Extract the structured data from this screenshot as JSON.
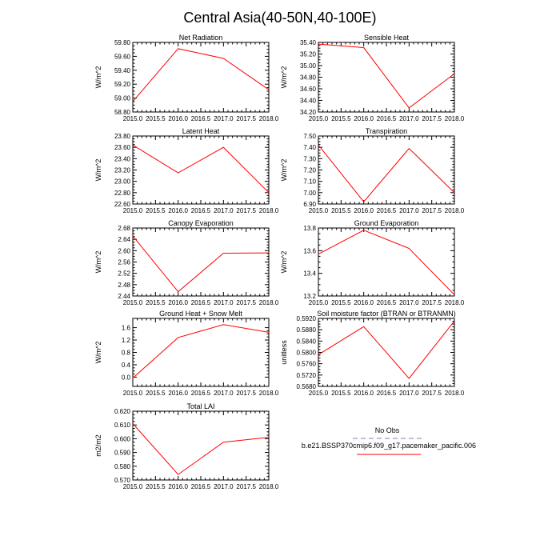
{
  "figure_title": "Central Asia(40-50N,40-100E)",
  "colors": {
    "model_line": "#ff0000",
    "obs_line": "#aaaacc",
    "axis": "#000000"
  },
  "x_ticks": [
    "2015.0",
    "2015.5",
    "2016.0",
    "2016.5",
    "2017.0",
    "2017.5",
    "2018.0"
  ],
  "legend": {
    "obs_label": "No Obs",
    "model_label": "b.e21.BSSP370cmip6.f09_g17.pacemaker_pacific.006"
  },
  "chart_data": [
    {
      "type": "line",
      "title": "Net Radiation",
      "ylabel": "W/m^2",
      "xlim": [
        2015,
        2018
      ],
      "ylim": [
        58.8,
        59.8
      ],
      "yticks": [
        "58.80",
        "59.00",
        "59.20",
        "59.40",
        "59.60",
        "59.80"
      ],
      "series": [
        {
          "name": "b.e21.BSSP370cmip6.f09_g17.pacemaker_pacific.006",
          "x": [
            2015,
            2016,
            2017,
            2018
          ],
          "y": [
            58.95,
            59.71,
            59.57,
            59.12
          ]
        }
      ]
    },
    {
      "type": "line",
      "title": "Sensible Heat",
      "ylabel": "W/m^2",
      "xlim": [
        2015,
        2018
      ],
      "ylim": [
        34.2,
        35.4
      ],
      "yticks": [
        "34.20",
        "34.40",
        "34.60",
        "34.80",
        "35.00",
        "35.20",
        "35.40"
      ],
      "series": [
        {
          "name": "b.e21.BSSP370cmip6.f09_g17.pacemaker_pacific.006",
          "x": [
            2015,
            2016,
            2017,
            2018
          ],
          "y": [
            35.37,
            35.31,
            34.27,
            34.86
          ]
        }
      ]
    },
    {
      "type": "line",
      "title": "Latent Heat",
      "ylabel": "W/m^2",
      "xlim": [
        2015,
        2018
      ],
      "ylim": [
        22.6,
        23.8
      ],
      "yticks": [
        "22.60",
        "22.80",
        "23.00",
        "23.20",
        "23.40",
        "23.60",
        "23.80"
      ],
      "series": [
        {
          "name": "b.e21.BSSP370cmip6.f09_g17.pacemaker_pacific.006",
          "x": [
            2015,
            2016,
            2017,
            2018
          ],
          "y": [
            23.64,
            23.15,
            23.6,
            22.8
          ]
        }
      ]
    },
    {
      "type": "line",
      "title": "Transpiration",
      "ylabel": "W/m^2",
      "xlim": [
        2015,
        2018
      ],
      "ylim": [
        6.9,
        7.5
      ],
      "yticks": [
        "6.90",
        "7.00",
        "7.10",
        "7.20",
        "7.30",
        "7.40",
        "7.50"
      ],
      "series": [
        {
          "name": "b.e21.BSSP370cmip6.f09_g17.pacemaker_pacific.006",
          "x": [
            2015,
            2016,
            2017,
            2018
          ],
          "y": [
            7.42,
            6.92,
            7.39,
            7.0
          ]
        }
      ]
    },
    {
      "type": "line",
      "title": "Canopy Evaporation",
      "ylabel": "W/m^2",
      "xlim": [
        2015,
        2018
      ],
      "ylim": [
        2.44,
        2.68
      ],
      "yticks": [
        "2.44",
        "2.48",
        "2.52",
        "2.56",
        "2.60",
        "2.64",
        "2.68"
      ],
      "series": [
        {
          "name": "b.e21.BSSP370cmip6.f09_g17.pacemaker_pacific.006",
          "x": [
            2015,
            2016,
            2017,
            2018
          ],
          "y": [
            2.652,
            2.455,
            2.591,
            2.592
          ]
        }
      ]
    },
    {
      "type": "line",
      "title": "Ground Evaporation",
      "ylabel": "W/m^2",
      "xlim": [
        2015,
        2018
      ],
      "ylim": [
        13.2,
        13.8
      ],
      "yticks": [
        "13.2",
        "13.4",
        "13.6",
        "13.8"
      ],
      "series": [
        {
          "name": "b.e21.BSSP370cmip6.f09_g17.pacemaker_pacific.006",
          "x": [
            2015,
            2016,
            2017,
            2018
          ],
          "y": [
            13.57,
            13.78,
            13.62,
            13.21
          ]
        }
      ]
    },
    {
      "type": "line",
      "title": "Ground Heat + Snow Melt",
      "ylabel": "W/m^2",
      "xlim": [
        2015,
        2018
      ],
      "ylim": [
        -0.3,
        1.9
      ],
      "yticks": [
        "0.0",
        "0.4",
        "0.8",
        "1.2",
        "1.6"
      ],
      "ytick_values": [
        0.0,
        0.4,
        0.8,
        1.2,
        1.6
      ],
      "series": [
        {
          "name": "b.e21.BSSP370cmip6.f09_g17.pacemaker_pacific.006",
          "x": [
            2015,
            2016,
            2017,
            2018
          ],
          "y": [
            -0.03,
            1.28,
            1.7,
            1.45
          ]
        }
      ]
    },
    {
      "type": "line",
      "title": "Soil moisture factor (BTRAN or BTRANMN)",
      "ylabel": "unitless",
      "xlim": [
        2015,
        2018
      ],
      "ylim": [
        0.568,
        0.592
      ],
      "yticks": [
        "0.5680",
        "0.5720",
        "0.5760",
        "0.5800",
        "0.5840",
        "0.5880",
        "0.5920"
      ],
      "series": [
        {
          "name": "b.e21.BSSP370cmip6.f09_g17.pacemaker_pacific.006",
          "x": [
            2015,
            2016,
            2017,
            2018
          ],
          "y": [
            0.5792,
            0.5891,
            0.5708,
            0.5911
          ]
        }
      ]
    },
    {
      "type": "line",
      "title": "Total LAI",
      "ylabel": "m2/m2",
      "xlim": [
        2015,
        2018
      ],
      "ylim": [
        0.57,
        0.62
      ],
      "yticks": [
        "0.570",
        "0.580",
        "0.590",
        "0.600",
        "0.610",
        "0.620"
      ],
      "series": [
        {
          "name": "b.e21.BSSP370cmip6.f09_g17.pacemaker_pacific.006",
          "x": [
            2015,
            2016,
            2017,
            2018
          ],
          "y": [
            0.611,
            0.574,
            0.5975,
            0.601
          ]
        }
      ]
    }
  ]
}
